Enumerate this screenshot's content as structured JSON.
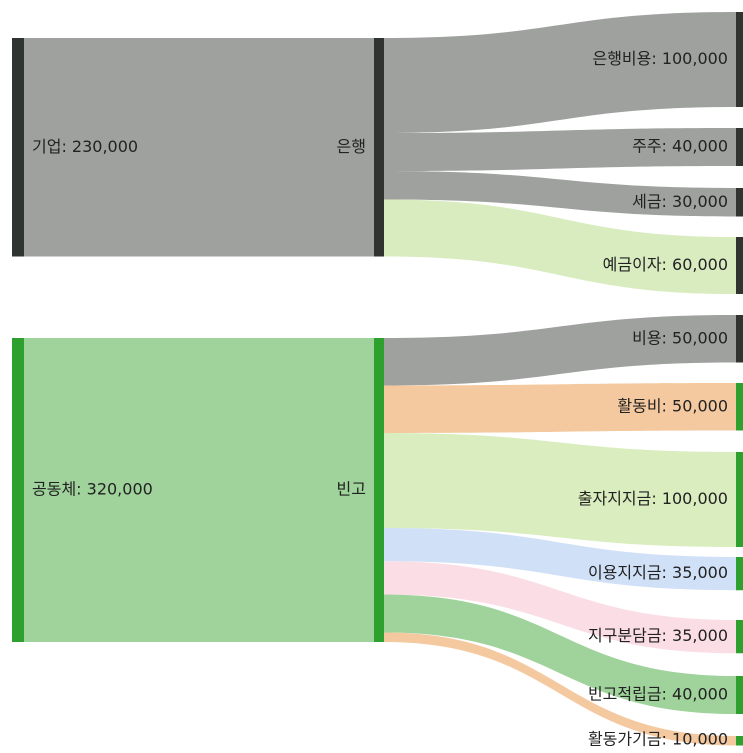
{
  "chart_data": {
    "type": "sankey",
    "nodes": [
      {
        "label": "기업: 230,000",
        "value": 230000,
        "color": "#2f3430"
      },
      {
        "label": "공동체: 320,000",
        "value": 320000,
        "color": "#2ea02e"
      },
      {
        "label": "은행",
        "color": "#2f3430"
      },
      {
        "label": "빈고",
        "color": "#2ea02e"
      },
      {
        "label": "은행비용: 100,000",
        "value": 100000,
        "color": "#2f3430"
      },
      {
        "label": "주주: 40,000",
        "value": 40000,
        "color": "#2f3430"
      },
      {
        "label": "세금: 30,000",
        "value": 30000,
        "color": "#2f3430"
      },
      {
        "label": "예금이자: 60,000",
        "value": 60000,
        "color": "#2f3430"
      },
      {
        "label": "비용: 50,000",
        "value": 50000,
        "color": "#2f3430"
      },
      {
        "label": "활동비: 50,000",
        "value": 50000,
        "color": "#2ea02e"
      },
      {
        "label": "출자지지금: 100,000",
        "value": 100000,
        "color": "#2ea02e"
      },
      {
        "label": "이용지지금: 35,000",
        "value": 35000,
        "color": "#2ea02e"
      },
      {
        "label": "지구분담금: 35,000",
        "value": 35000,
        "color": "#2ea02e"
      },
      {
        "label": "빈고적립금: 40,000",
        "value": 40000,
        "color": "#2ea02e"
      },
      {
        "label": "활동가기금: 10,000",
        "value": 10000,
        "color": "#2ea02e"
      }
    ],
    "links": [
      {
        "source": 0,
        "target": 2,
        "color": "#9ea19e"
      },
      {
        "source": 1,
        "target": 3,
        "color": "#9fd39b"
      },
      {
        "source": 2,
        "target": 4,
        "color": "#9ea19e"
      },
      {
        "source": 2,
        "target": 5,
        "color": "#9ea19e"
      },
      {
        "source": 2,
        "target": 6,
        "color": "#9ea19e"
      },
      {
        "source": 2,
        "target": 7,
        "color": "#d9ecc0"
      },
      {
        "source": 3,
        "target": 8,
        "color": "#9ea19e"
      },
      {
        "source": 3,
        "target": 9,
        "color": "#f5c9a0"
      },
      {
        "source": 3,
        "target": 10,
        "color": "#daedbf"
      },
      {
        "source": 3,
        "target": 11,
        "color": "#cfe0f7"
      },
      {
        "source": 3,
        "target": 12,
        "color": "#fbdde6"
      },
      {
        "source": 3,
        "target": 13,
        "color": "#9fd39b"
      },
      {
        "source": 3,
        "target": 14,
        "color": "#f5c9a0"
      }
    ]
  }
}
